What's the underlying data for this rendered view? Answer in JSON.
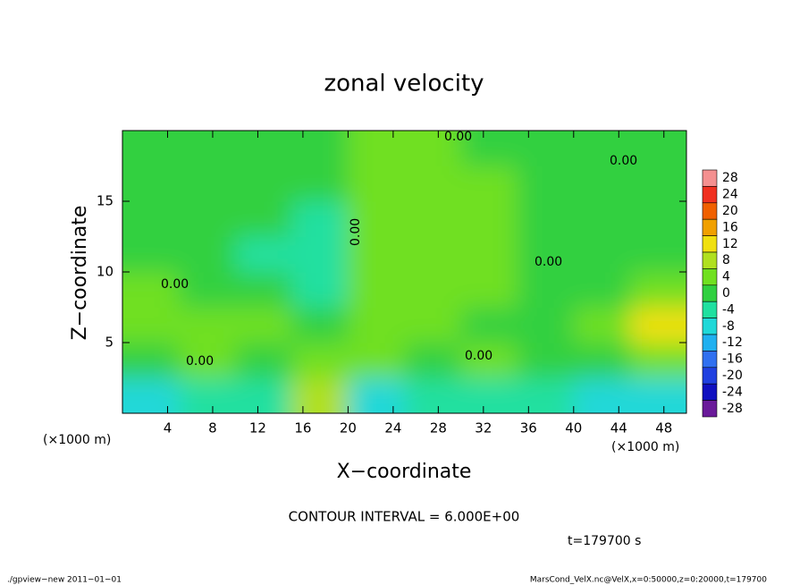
{
  "chart_data": {
    "type": "contour",
    "title": "zonal velocity",
    "xlabel": "X−coordinate",
    "ylabel": "Z−coordinate",
    "x_unit": "(×1000 m)",
    "y_unit": "(×1000 m)",
    "xlim": [
      0,
      50
    ],
    "ylim": [
      0,
      20
    ],
    "xticks": [
      4,
      8,
      12,
      16,
      20,
      24,
      28,
      32,
      36,
      40,
      44,
      48
    ],
    "yticks": [
      5,
      10,
      15
    ],
    "x": [
      2.5,
      7.5,
      12.5,
      17.5,
      22.5,
      27.5,
      32.5,
      37.5,
      42.5,
      47.5
    ],
    "y": [
      1.25,
      3.75,
      6.25,
      8.75,
      11.25,
      13.75,
      16.25,
      18.75
    ],
    "z": [
      [
        -7,
        -6,
        -3,
        6,
        -7,
        -5,
        -3,
        -4,
        -8,
        -8
      ],
      [
        1,
        2,
        -2,
        2,
        2,
        1,
        2,
        0,
        0,
        3
      ],
      [
        5,
        3,
        2,
        0,
        4,
        2,
        1,
        -1,
        3,
        13
      ],
      [
        4,
        1,
        -2,
        -5,
        5,
        4,
        2,
        -1,
        1,
        2
      ],
      [
        1,
        -1,
        -3,
        -4,
        3,
        3,
        2,
        1,
        1,
        0
      ],
      [
        -1,
        -1,
        -2,
        -3,
        2,
        3,
        2,
        1,
        0,
        -1
      ],
      [
        -1,
        -1,
        -1,
        -2,
        2,
        3,
        2,
        1,
        -1,
        -1
      ],
      [
        -1,
        -1,
        -1,
        -1,
        2,
        2,
        1,
        0,
        -1,
        -1
      ]
    ],
    "colorbar": {
      "ticks": [
        28,
        24,
        20,
        16,
        12,
        8,
        4,
        0,
        -4,
        -8,
        -12,
        -16,
        -20,
        -24,
        -28
      ],
      "colors": [
        "#f49090",
        "#f03020",
        "#f06000",
        "#f0a000",
        "#f0e010",
        "#b0e020",
        "#70e020",
        "#30d040",
        "#20e0a0",
        "#20d8d8",
        "#20b0f0",
        "#3070f0",
        "#2040e0",
        "#1010c0",
        "#6a1a9a"
      ]
    },
    "contour_labels": [
      "0.00",
      "0.00",
      "0.00",
      "0.00",
      "0.00",
      "0.00",
      "0.00"
    ],
    "contour_interval": "CONTOUR INTERVAL = 6.000E+00",
    "time_label": "t=179700 s",
    "footer_left": "./gpview−new   2011−01−01",
    "footer_right": "MarsCond_VelX.nc@VelX,x=0:50000,z=0:20000,t=179700"
  }
}
